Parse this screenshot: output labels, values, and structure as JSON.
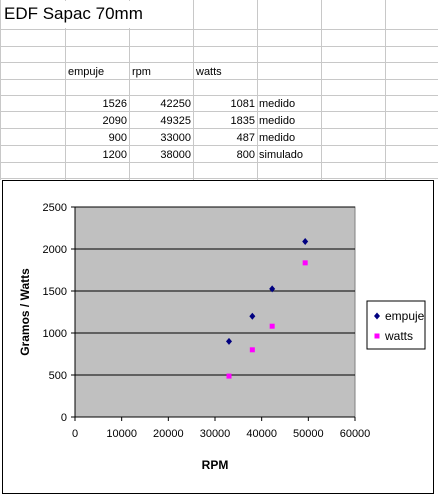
{
  "sheet": {
    "title": "EDF Sapac 70mm",
    "headers": [
      "empuje",
      "rpm",
      "watts"
    ],
    "rows": [
      {
        "empuje": "1526",
        "rpm": "42250",
        "watts": "1081",
        "note": "medido"
      },
      {
        "empuje": "2090",
        "rpm": "49325",
        "watts": "1835",
        "note": "medido"
      },
      {
        "empuje": "900",
        "rpm": "33000",
        "watts": "487",
        "note": "medido"
      },
      {
        "empuje": "1200",
        "rpm": "38000",
        "watts": "800",
        "note": "simulado"
      }
    ]
  },
  "chart_data": {
    "type": "scatter",
    "title": "",
    "xlabel": "RPM",
    "ylabel": "Gramos / Watts",
    "xlim": [
      0,
      60000
    ],
    "ylim": [
      0,
      2500
    ],
    "xticks": [
      "0",
      "10000",
      "20000",
      "30000",
      "40000",
      "50000",
      "60000"
    ],
    "yticks": [
      "0",
      "500",
      "1000",
      "1500",
      "2000",
      "2500"
    ],
    "grid": "horizontal",
    "plot_background": "#c0c0c0",
    "legend_position": "right",
    "series": [
      {
        "name": "empuje",
        "marker": "diamond",
        "color": "#000080",
        "points": [
          [
            42250,
            1526
          ],
          [
            49325,
            2090
          ],
          [
            33000,
            900
          ],
          [
            38000,
            1200
          ]
        ]
      },
      {
        "name": "watts",
        "marker": "square",
        "color": "#ff00ff",
        "points": [
          [
            42250,
            1081
          ],
          [
            49325,
            1835
          ],
          [
            33000,
            487
          ],
          [
            38000,
            800
          ]
        ]
      }
    ]
  }
}
